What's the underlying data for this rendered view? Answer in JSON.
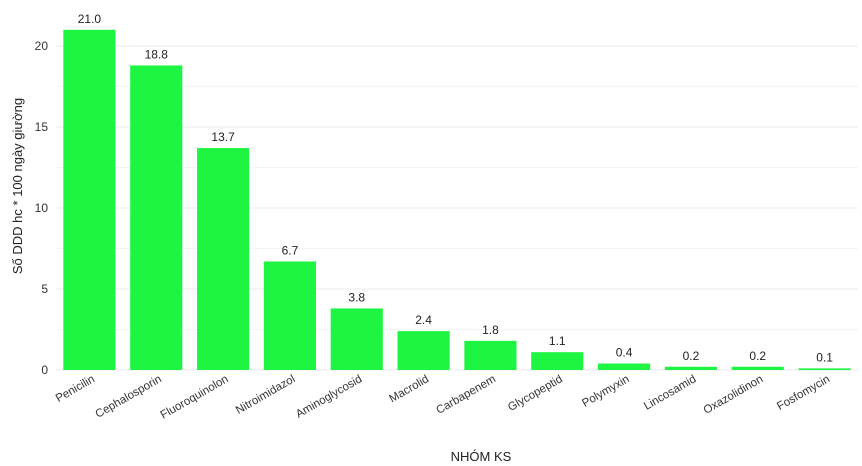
{
  "chart_data": {
    "type": "bar",
    "categories": [
      "Penicilin",
      "Cephalosporin",
      "Fluoroquinolon",
      "Nitroimidazol",
      "Aminoglycosid",
      "Macrolid",
      "Carbapenem",
      "Glycopeptid",
      "Polymyxin",
      "Lincosamid",
      "Oxazolidinon",
      "Fosfomycin"
    ],
    "values": [
      21.0,
      18.8,
      13.7,
      6.7,
      3.8,
      2.4,
      1.8,
      1.1,
      0.4,
      0.2,
      0.2,
      0.1
    ],
    "value_labels": [
      "21.0",
      "18.8",
      "13.7",
      "6.7",
      "3.8",
      "2.4",
      "1.8",
      "1.1",
      "0.4",
      "0.2",
      "0.2",
      "0.1"
    ],
    "xlabel": "NHÓM KS",
    "ylabel": "Số DDD hc * 100 ngày giường",
    "yticks": [
      0,
      5,
      10,
      15,
      20
    ],
    "ylim": [
      0,
      21.2
    ],
    "bar_color": "#1ef542",
    "grid": true,
    "legend": false
  }
}
